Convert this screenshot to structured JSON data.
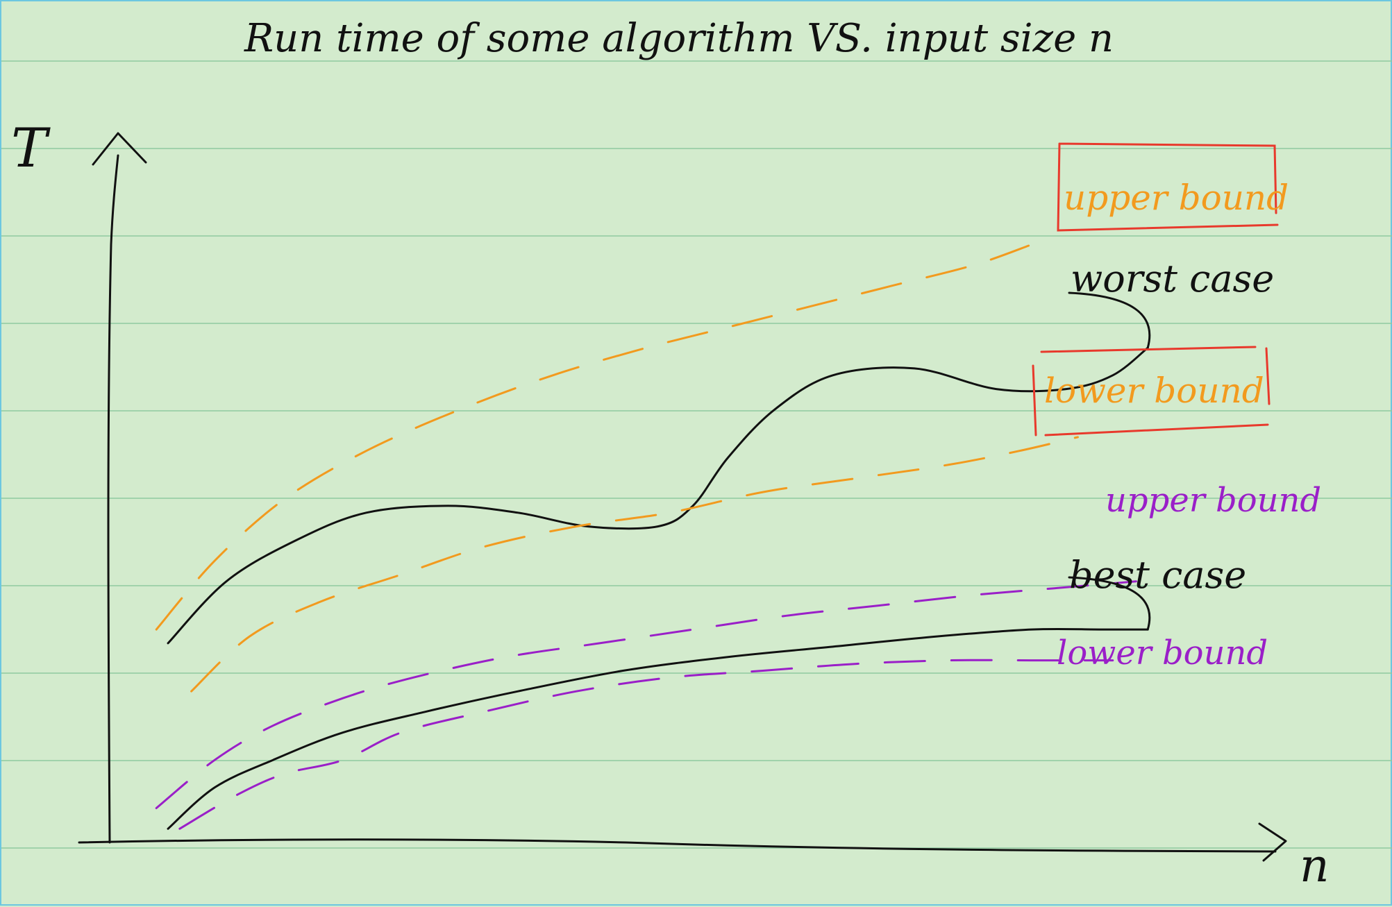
{
  "chart_data": {
    "type": "line",
    "title": "Run time of some algorithm VS. input size n",
    "xlabel": "n",
    "ylabel": "T",
    "grid": "horizontal ruled lines (notebook paper)",
    "legend": "right-side inline labels",
    "colors": {
      "paper": "#d3ebcd",
      "rule_lines": "#8fcaa0",
      "ink": "#111111",
      "orange": "#f29a1e",
      "purple": "#9a1fc8",
      "box_red": "#e8392c"
    },
    "series": [
      {
        "name": "worst case",
        "style": "solid",
        "color": "#111111",
        "group": "worst",
        "x": [
          0.05,
          0.1,
          0.16,
          0.22,
          0.29,
          0.35,
          0.41,
          0.47,
          0.5,
          0.53,
          0.57,
          0.62,
          0.69,
          0.76,
          0.82,
          0.86,
          0.89
        ],
        "y": [
          0.29,
          0.38,
          0.44,
          0.48,
          0.49,
          0.48,
          0.46,
          0.46,
          0.49,
          0.56,
          0.63,
          0.68,
          0.69,
          0.66,
          0.66,
          0.68,
          0.72
        ]
      },
      {
        "name": "upper bound",
        "style": "dashed",
        "color": "#f29a1e",
        "group": "worst",
        "x": [
          0.04,
          0.09,
          0.15,
          0.22,
          0.3,
          0.38,
          0.46,
          0.53,
          0.6,
          0.67,
          0.74,
          0.79
        ],
        "y": [
          0.31,
          0.41,
          0.5,
          0.57,
          0.63,
          0.68,
          0.72,
          0.75,
          0.78,
          0.81,
          0.84,
          0.87
        ]
      },
      {
        "name": "lower bound",
        "style": "dashed",
        "color": "#f29a1e",
        "group": "worst",
        "x": [
          0.07,
          0.12,
          0.18,
          0.25,
          0.32,
          0.4,
          0.48,
          0.56,
          0.64,
          0.72,
          0.78,
          0.83
        ],
        "y": [
          0.22,
          0.3,
          0.35,
          0.39,
          0.43,
          0.46,
          0.48,
          0.51,
          0.53,
          0.55,
          0.57,
          0.59
        ]
      },
      {
        "name": "best case",
        "style": "solid",
        "color": "#111111",
        "group": "best",
        "x": [
          0.05,
          0.09,
          0.14,
          0.2,
          0.27,
          0.35,
          0.44,
          0.53,
          0.62,
          0.71,
          0.79,
          0.85,
          0.89
        ],
        "y": [
          0.02,
          0.08,
          0.12,
          0.16,
          0.19,
          0.22,
          0.25,
          0.27,
          0.285,
          0.3,
          0.31,
          0.31,
          0.31
        ]
      },
      {
        "name": "upper bound",
        "style": "dashed",
        "color": "#9a1fc8",
        "group": "best",
        "x": [
          0.04,
          0.09,
          0.14,
          0.2,
          0.26,
          0.34,
          0.42,
          0.5,
          0.58,
          0.66,
          0.74,
          0.81,
          0.88
        ],
        "y": [
          0.05,
          0.12,
          0.17,
          0.21,
          0.24,
          0.27,
          0.29,
          0.31,
          0.33,
          0.345,
          0.36,
          0.37,
          0.38
        ]
      },
      {
        "name": "lower bound",
        "style": "dashed",
        "color": "#9a1fc8",
        "group": "best",
        "x": [
          0.06,
          0.11,
          0.15,
          0.2,
          0.25,
          0.32,
          0.4,
          0.48,
          0.56,
          0.64,
          0.72,
          0.79,
          0.86
        ],
        "y": [
          0.02,
          0.07,
          0.1,
          0.12,
          0.16,
          0.19,
          0.22,
          0.24,
          0.25,
          0.26,
          0.265,
          0.265,
          0.265
        ]
      }
    ],
    "labels": {
      "title": "Run time of some algorithm VS. input size n",
      "y_axis": "T",
      "x_axis": "n",
      "worst_case": "worst case",
      "best_case": "best case",
      "orange_upper": "upper bound",
      "orange_lower": "lower bound",
      "purple_upper": "upper bound",
      "purple_lower": "lower bound"
    }
  }
}
